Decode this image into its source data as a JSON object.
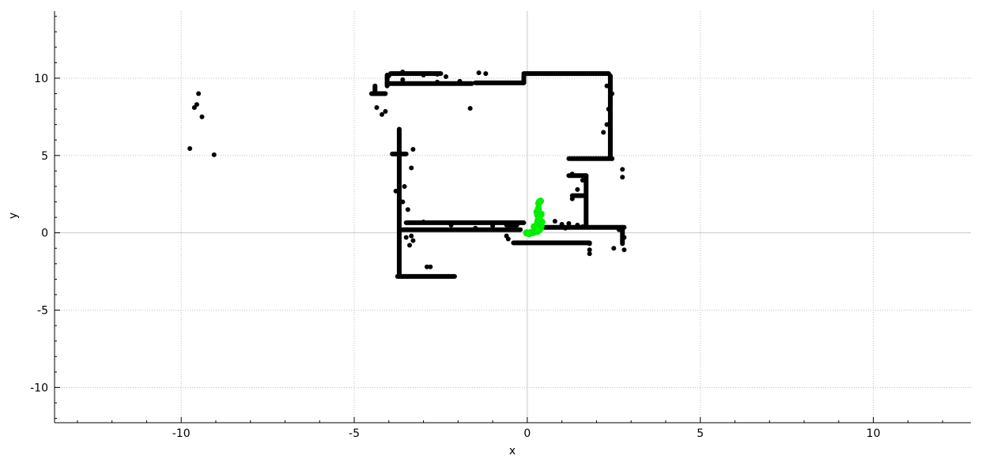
{
  "chart_data": {
    "type": "scatter",
    "xlabel": "x",
    "ylabel": "y",
    "xlim": [
      -13.66,
      12.82
    ],
    "ylim": [
      -12.28,
      14.34
    ],
    "xticks": [
      -10,
      -5,
      0,
      5,
      10
    ],
    "xtick_labels": [
      "-10",
      "-5",
      "0",
      "5",
      "10"
    ],
    "yticks": [
      -10,
      -5,
      0,
      5,
      10
    ],
    "ytick_labels": [
      "-10",
      "-5",
      "0",
      "5",
      "10"
    ],
    "grid": true,
    "series": [
      {
        "color": "#000000",
        "segments": [
          [
            -4.5,
            9.0,
            -4.1,
            9.0
          ],
          [
            -4.4,
            9.05,
            -4.4,
            9.5
          ],
          [
            -4.05,
            9.5,
            -4.05,
            10.2
          ],
          [
            -4.05,
            9.65,
            -1.6,
            9.65
          ],
          [
            -3.95,
            10.3,
            -2.5,
            10.3
          ],
          [
            -1.5,
            9.7,
            -0.1,
            9.7
          ],
          [
            -0.1,
            9.7,
            -0.1,
            10.15
          ],
          [
            -0.1,
            10.3,
            2.35,
            10.3
          ],
          [
            2.4,
            10.15,
            2.4,
            4.9
          ],
          [
            1.2,
            4.8,
            2.45,
            4.8
          ],
          [
            1.2,
            3.7,
            1.7,
            3.7
          ],
          [
            1.7,
            3.7,
            1.7,
            0.4
          ],
          [
            1.3,
            2.4,
            1.65,
            2.4
          ],
          [
            -3.7,
            6.7,
            -3.7,
            -2.8
          ],
          [
            -3.9,
            5.1,
            -3.5,
            5.1
          ],
          [
            -3.75,
            -2.82,
            -2.1,
            -2.82
          ],
          [
            -3.5,
            0.65,
            -0.1,
            0.65
          ],
          [
            -3.6,
            0.2,
            -0.2,
            0.2
          ],
          [
            0.3,
            0.35,
            2.8,
            0.35
          ],
          [
            -0.4,
            -0.65,
            1.8,
            -0.65
          ],
          [
            2.75,
            0.35,
            2.75,
            -0.7
          ],
          [
            -0.6,
            0.5,
            -0.3,
            0.5
          ]
        ],
        "points": [
          [
            -9.5,
            9.0
          ],
          [
            -9.55,
            8.3
          ],
          [
            -9.62,
            8.1
          ],
          [
            -9.4,
            7.5
          ],
          [
            -9.75,
            5.45
          ],
          [
            -9.05,
            5.05
          ],
          [
            -4.35,
            8.1
          ],
          [
            -4.1,
            7.85
          ],
          [
            -4.2,
            7.65
          ],
          [
            -3.0,
            10.2
          ],
          [
            -2.8,
            10.3
          ],
          [
            -2.35,
            10.1
          ],
          [
            -1.65,
            8.05
          ],
          [
            -1.4,
            10.35
          ],
          [
            -1.2,
            10.3
          ],
          [
            -1.95,
            9.8
          ],
          [
            -2.6,
            9.75
          ],
          [
            -3.3,
            5.4
          ],
          [
            -3.35,
            4.2
          ],
          [
            -3.55,
            3.0
          ],
          [
            -3.8,
            2.7
          ],
          [
            -3.6,
            2.0
          ],
          [
            -3.45,
            1.5
          ],
          [
            -3.5,
            -0.3
          ],
          [
            -3.3,
            -0.5
          ],
          [
            -3.4,
            -0.8
          ],
          [
            -3.35,
            -0.2
          ],
          [
            -2.9,
            -2.2
          ],
          [
            -2.8,
            -2.2
          ],
          [
            -3.0,
            0.7
          ],
          [
            -2.2,
            0.5
          ],
          [
            -1.5,
            0.3
          ],
          [
            -1.0,
            0.45
          ],
          [
            -0.6,
            -0.2
          ],
          [
            -0.55,
            -0.4
          ],
          [
            0.8,
            0.75
          ],
          [
            1.0,
            0.55
          ],
          [
            1.2,
            0.6
          ],
          [
            1.1,
            0.3
          ],
          [
            1.45,
            0.5
          ],
          [
            1.6,
            0.4
          ],
          [
            1.3,
            2.2
          ],
          [
            1.45,
            2.8
          ],
          [
            1.6,
            3.4
          ],
          [
            1.3,
            3.8
          ],
          [
            2.2,
            6.5
          ],
          [
            2.3,
            7.0
          ],
          [
            2.35,
            8.0
          ],
          [
            2.45,
            9.0
          ],
          [
            2.3,
            9.5
          ],
          [
            2.45,
            4.8
          ],
          [
            2.65,
            0.2
          ],
          [
            2.8,
            -0.3
          ],
          [
            2.5,
            -1.0
          ],
          [
            2.8,
            -1.1
          ],
          [
            1.8,
            -1.1
          ],
          [
            1.8,
            -1.35
          ],
          [
            1.8,
            -0.7
          ],
          [
            2.75,
            4.1
          ],
          [
            2.75,
            3.6
          ],
          [
            -2.6,
            10.25
          ],
          [
            -3.6,
            10.4
          ],
          [
            -3.6,
            9.9
          ],
          [
            -4.0,
            10.15
          ]
        ]
      },
      {
        "color": "#00ee00",
        "points": [
          [
            -0.02,
            0.0
          ],
          [
            0.05,
            -0.05
          ],
          [
            0.1,
            0.02
          ],
          [
            0.15,
            0.0
          ],
          [
            0.2,
            0.05
          ],
          [
            0.22,
            0.15
          ],
          [
            0.3,
            0.1
          ],
          [
            0.35,
            0.2
          ],
          [
            0.38,
            0.3
          ],
          [
            0.4,
            0.45
          ],
          [
            0.35,
            0.55
          ],
          [
            0.3,
            0.7
          ],
          [
            0.32,
            0.85
          ],
          [
            0.35,
            1.0
          ],
          [
            0.3,
            1.15
          ],
          [
            0.28,
            1.35
          ],
          [
            0.32,
            1.55
          ],
          [
            0.33,
            1.9
          ],
          [
            0.35,
            2.0
          ],
          [
            0.38,
            2.05
          ],
          [
            0.25,
            0.3
          ],
          [
            0.2,
            0.4
          ],
          [
            0.42,
            0.7
          ],
          [
            0.4,
            1.2
          ]
        ]
      }
    ]
  }
}
